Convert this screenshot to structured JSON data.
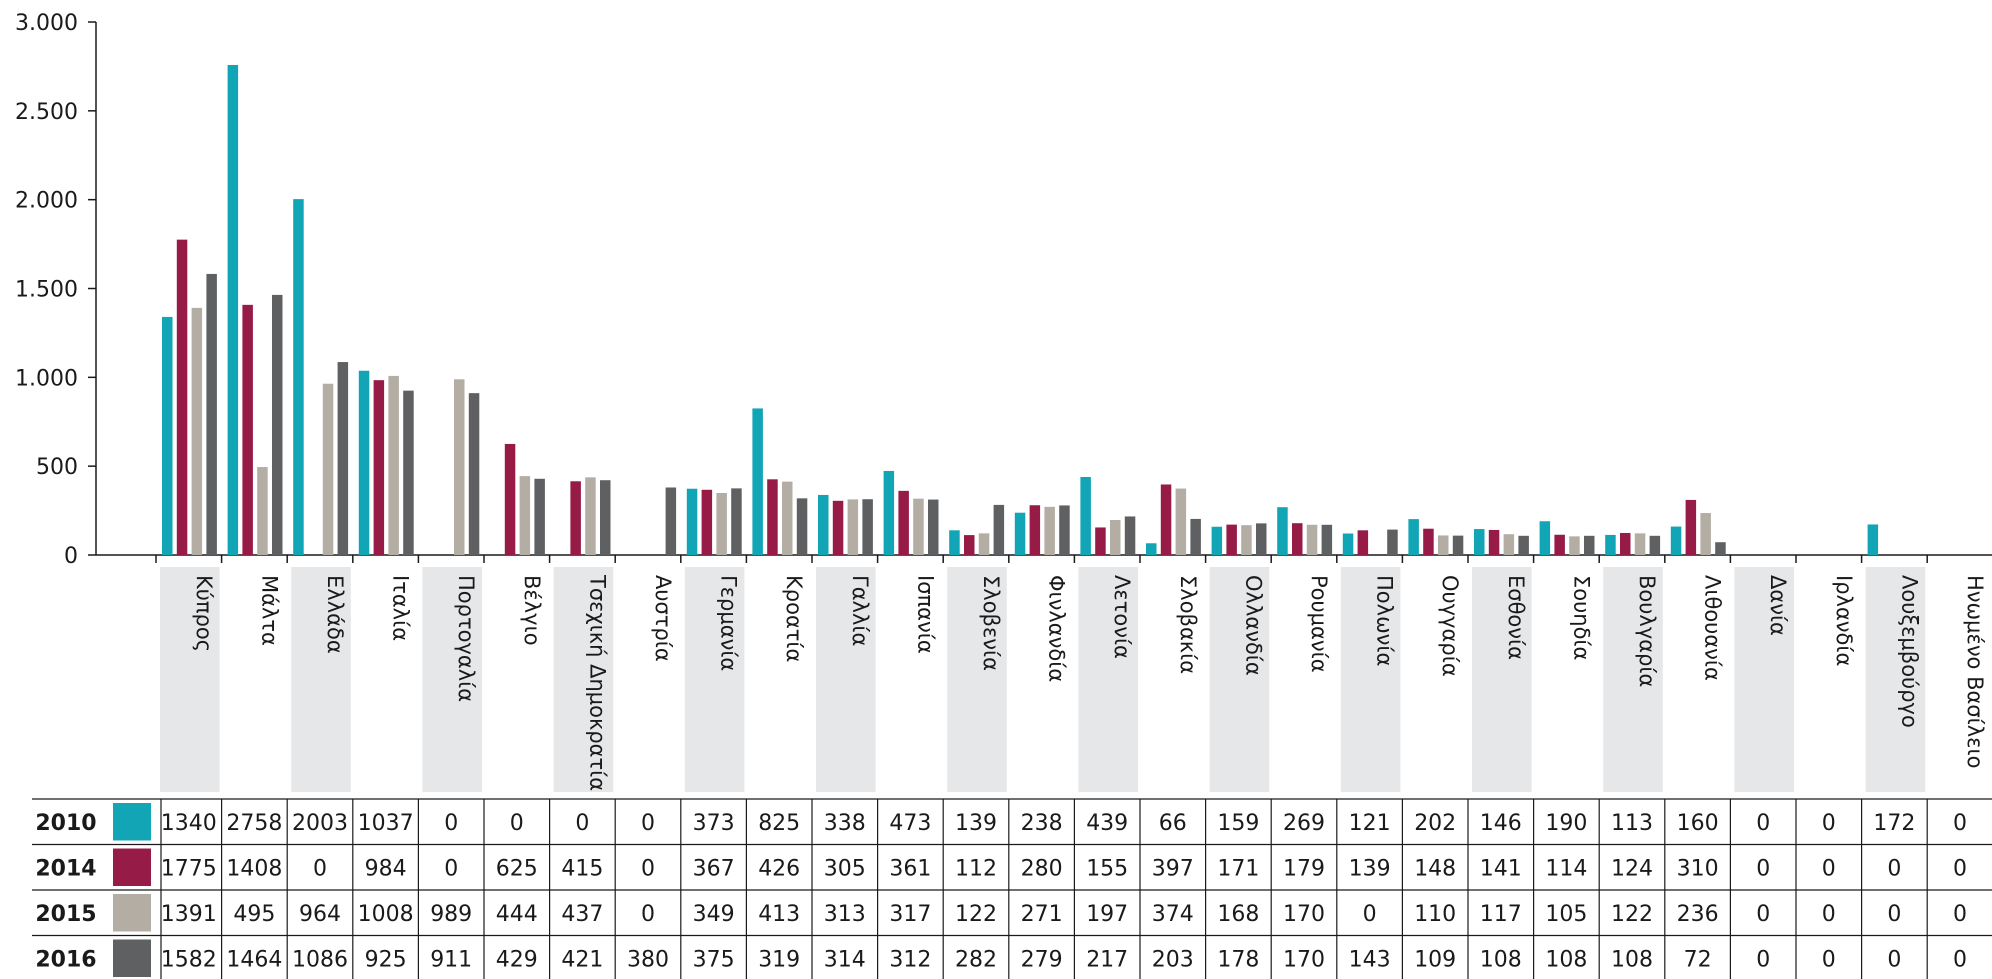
{
  "chart_data": {
    "type": "bar",
    "title": "",
    "xlabel": "",
    "ylabel": "",
    "ylim": [
      0,
      3000
    ],
    "yticks": [
      0,
      500,
      1000,
      1500,
      2000,
      2500,
      3000
    ],
    "ytick_labels": [
      "0",
      "500",
      "1.000",
      "1.500",
      "2.000",
      "2.500",
      "3.000"
    ],
    "grid": false,
    "legend": "table-below",
    "categories": [
      "Κύπρος",
      "Μάλτα",
      "Ελλάδα",
      "Ιταλία",
      "Πορτογαλία",
      "Βέλγιο",
      "Τσεχική Δημοκρατία",
      "Αυστρία",
      "Γερμανία",
      "Κροατία",
      "Γαλλία",
      "Ισπανία",
      "Σλοβενία",
      "Φινλανδία",
      "Λετονία",
      "Σλοβακία",
      "Ολλανδία",
      "Ρουμανία",
      "Πολωνία",
      "Ουγγαρία",
      "Εσθονία",
      "Σουηδία",
      "Βουλγαρία",
      "Λιθουανία",
      "Δανία",
      "Ιρλανδία",
      "Λουξεμβούργο",
      "Ηνωμένο Βασίλειο"
    ],
    "series": [
      {
        "name": "2010",
        "color": "#11a5b6",
        "values": [
          1340,
          2758,
          2003,
          1037,
          0,
          0,
          0,
          0,
          373,
          825,
          338,
          473,
          139,
          238,
          439,
          66,
          159,
          269,
          121,
          202,
          146,
          190,
          113,
          160,
          0,
          0,
          172,
          0
        ]
      },
      {
        "name": "2014",
        "color": "#961b47",
        "values": [
          1775,
          1408,
          0,
          984,
          0,
          625,
          415,
          0,
          367,
          426,
          305,
          361,
          112,
          280,
          155,
          397,
          171,
          179,
          139,
          148,
          141,
          114,
          124,
          310,
          0,
          0,
          0,
          0
        ]
      },
      {
        "name": "2015",
        "color": "#b3ada4",
        "values": [
          1391,
          495,
          964,
          1008,
          989,
          444,
          437,
          0,
          349,
          413,
          313,
          317,
          122,
          271,
          197,
          374,
          168,
          170,
          0,
          110,
          117,
          105,
          122,
          236,
          0,
          0,
          0,
          0
        ]
      },
      {
        "name": "2016",
        "color": "#5f6062",
        "values": [
          1582,
          1464,
          1086,
          925,
          911,
          429,
          421,
          380,
          375,
          319,
          314,
          312,
          282,
          279,
          217,
          203,
          178,
          170,
          143,
          109,
          108,
          108,
          108,
          72,
          0,
          0,
          0,
          0
        ]
      }
    ]
  }
}
